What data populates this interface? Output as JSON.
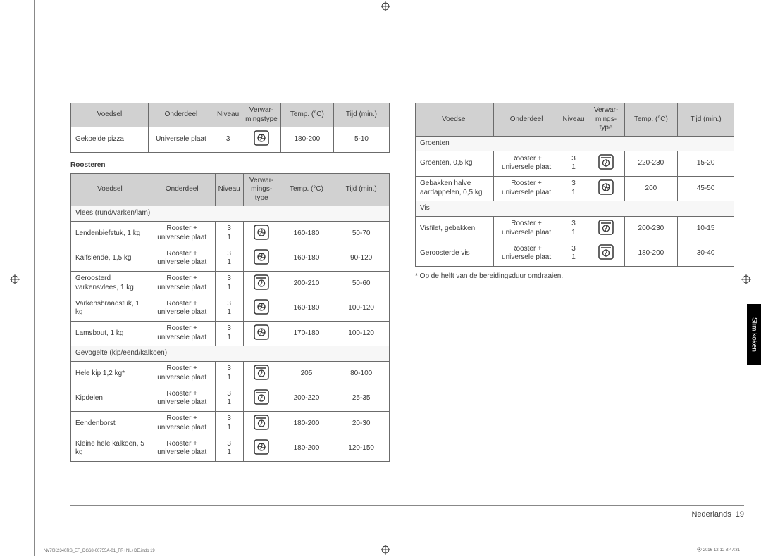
{
  "colors": {
    "border": "#6b6b6b",
    "header_bg": "#d1d1d1",
    "text": "#3a3a3a",
    "tab_bg": "#000000",
    "tab_text": "#ffffff",
    "rule": "#888888"
  },
  "headers": {
    "voedsel": "Voedsel",
    "onderdeel": "Onderdeel",
    "niveau": "Niveau",
    "verwar": "Verwar-\nmingstype",
    "verwar3": "Verwar-\nmings-\ntype",
    "temp": "Temp. (°C)",
    "tijd": "Tijd (min.)"
  },
  "table1": {
    "rows": [
      {
        "voedsel": "Gekoelde pizza",
        "onderdeel": "Universele plaat",
        "niveau": "3",
        "icon": "fan",
        "temp": "180-200",
        "tijd": "5-10"
      }
    ]
  },
  "section_roosteren": "Roosteren",
  "table2": {
    "sub1": "Vlees (rund/varken/lam)",
    "rows1": [
      {
        "voedsel": "Lendenbiefstuk, 1 kg",
        "onderdeel": "Rooster + universele plaat",
        "niveau": "3\n1",
        "icon": "fan",
        "temp": "160-180",
        "tijd": "50-70"
      },
      {
        "voedsel": "Kalfslende, 1,5 kg",
        "onderdeel": "Rooster + universele plaat",
        "niveau": "3\n1",
        "icon": "fan",
        "temp": "160-180",
        "tijd": "90-120"
      },
      {
        "voedsel": "Geroosterd varkensvlees, 1 kg",
        "onderdeel": "Rooster + universele plaat",
        "niveau": "3\n1",
        "icon": "top",
        "temp": "200-210",
        "tijd": "50-60"
      },
      {
        "voedsel": "Varkensbraadstuk, 1 kg",
        "onderdeel": "Rooster + universele plaat",
        "niveau": "3\n1",
        "icon": "fan",
        "temp": "160-180",
        "tijd": "100-120"
      },
      {
        "voedsel": "Lamsbout, 1 kg",
        "onderdeel": "Rooster + universele plaat",
        "niveau": "3\n1",
        "icon": "fan",
        "temp": "170-180",
        "tijd": "100-120"
      }
    ],
    "sub2": "Gevogelte (kip/eend/kalkoen)",
    "rows2": [
      {
        "voedsel": "Hele kip 1,2 kg*",
        "onderdeel": "Rooster + universele plaat",
        "niveau": "3\n1",
        "icon": "top",
        "temp": "205",
        "tijd": "80-100"
      },
      {
        "voedsel": "Kipdelen",
        "onderdeel": "Rooster + universele plaat",
        "niveau": "3\n1",
        "icon": "top",
        "temp": "200-220",
        "tijd": "25-35"
      },
      {
        "voedsel": "Eendenborst",
        "onderdeel": "Rooster + universele plaat",
        "niveau": "3\n1",
        "icon": "top",
        "temp": "180-200",
        "tijd": "20-30"
      },
      {
        "voedsel": "Kleine hele kalkoen, 5 kg",
        "onderdeel": "Rooster + universele plaat",
        "niveau": "3\n1",
        "icon": "fan",
        "temp": "180-200",
        "tijd": "120-150"
      }
    ]
  },
  "table3": {
    "sub1": "Groenten",
    "rows1": [
      {
        "voedsel": "Groenten, 0,5 kg",
        "onderdeel": "Rooster + universele plaat",
        "niveau": "3\n1",
        "icon": "top",
        "temp": "220-230",
        "tijd": "15-20"
      },
      {
        "voedsel": "Gebakken halve aardappelen, 0,5 kg",
        "onderdeel": "Rooster + universele plaat",
        "niveau": "3\n1",
        "icon": "fan",
        "temp": "200",
        "tijd": "45-50"
      }
    ],
    "sub2": "Vis",
    "rows2": [
      {
        "voedsel": "Visfilet, gebakken",
        "onderdeel": "Rooster + universele plaat",
        "niveau": "3\n1",
        "icon": "top",
        "temp": "200-230",
        "tijd": "10-15"
      },
      {
        "voedsel": "Geroosterde vis",
        "onderdeel": "Rooster + universele plaat",
        "niveau": "3\n1",
        "icon": "top",
        "temp": "180-200",
        "tijd": "30-40"
      }
    ]
  },
  "note": "* Op de helft van de bereidingsduur omdraaien.",
  "side_tab": "Slim koken",
  "footer": {
    "lang": "Nederlands",
    "page": "19"
  },
  "meta": {
    "file": "NV70K2340RS_EF_DG68-00755A-01_FR+NL+DE.indb   19",
    "stamp": "2016-12-12   8:47:31"
  },
  "colwidths": {
    "voedsel": 111,
    "onderdeel": 94,
    "niveau": 40,
    "icon": 52,
    "temp": 76,
    "tijd": 80
  }
}
